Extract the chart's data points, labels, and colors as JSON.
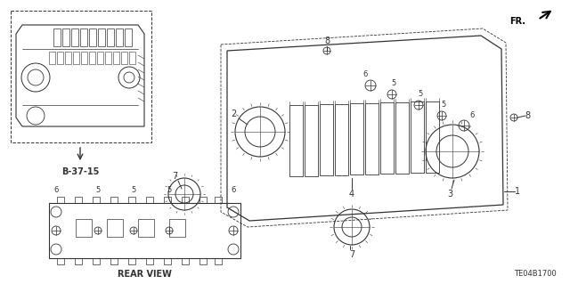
{
  "bg_color": "#ffffff",
  "diagram_color": "#333333",
  "line_color": "#444444",
  "title": "TE04B1700",
  "dpi": 100,
  "figsize": [
    6.4,
    3.19
  ],
  "fr_text": "FR.",
  "b3715_text": "B-37-15",
  "rear_view_text": "REAR VIEW",
  "label_fontsize": 7,
  "small_fontsize": 6
}
